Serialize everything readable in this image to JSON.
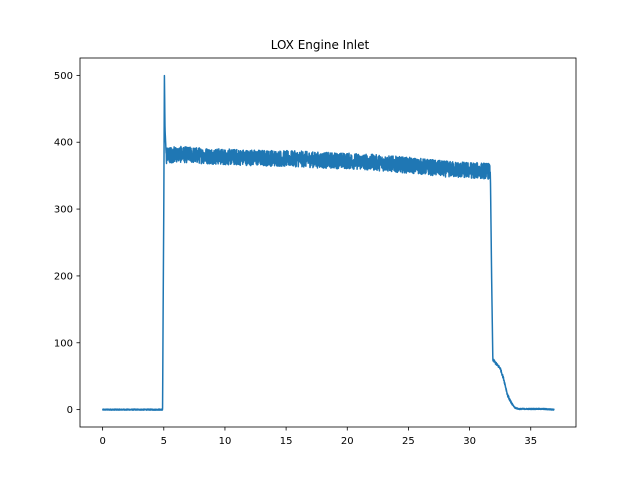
{
  "chart_data": {
    "type": "line",
    "title": "LOX Engine Inlet",
    "xlabel": "",
    "ylabel": "",
    "xlim": [
      -1.85,
      38.7
    ],
    "ylim": [
      -26,
      526
    ],
    "xticks": [
      0,
      5,
      10,
      15,
      20,
      25,
      30,
      35
    ],
    "yticks": [
      0,
      100,
      200,
      300,
      400,
      500
    ],
    "grid": false,
    "line_color": "#1f77b4",
    "noise_amplitude_in_steady_region": 12,
    "series": [
      {
        "x": [
          0,
          4.9,
          4.95,
          5.0,
          5.05,
          5.1,
          5.2,
          6.0,
          8.0,
          10.0,
          12.0,
          14.0,
          16.0,
          18.0,
          20.0,
          22.0,
          24.0,
          26.0,
          28.0,
          30.0,
          31.5,
          31.7,
          31.8,
          31.9,
          32.2,
          32.5,
          32.8,
          33.1,
          33.4,
          33.7,
          34.0,
          35.0,
          36.0,
          36.9
        ],
        "y": [
          0,
          0,
          160,
          300,
          500,
          420,
          380,
          382,
          380,
          378,
          377,
          376,
          375,
          373,
          372,
          370,
          367,
          364,
          360,
          358,
          357,
          355,
          200,
          75,
          68,
          62,
          45,
          22,
          10,
          3,
          1,
          1,
          1,
          0
        ]
      }
    ]
  }
}
